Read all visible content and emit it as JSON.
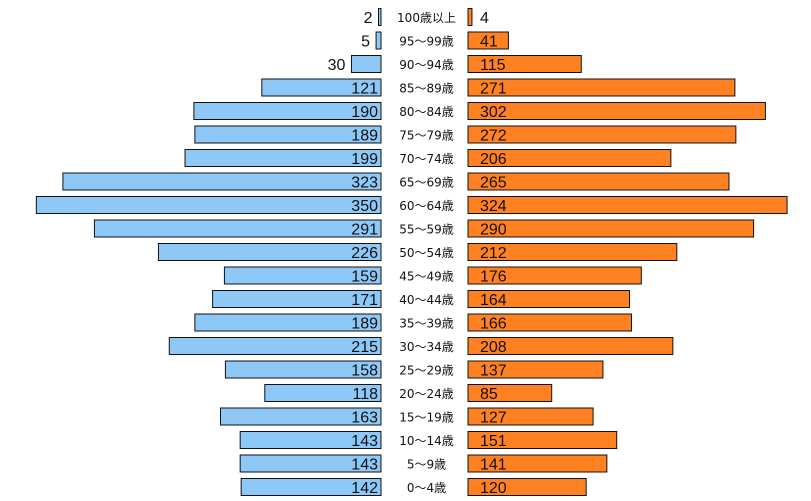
{
  "chart_data": {
    "type": "bar",
    "orientation": "horizontal",
    "layout": "population-pyramid",
    "categories": [
      "100歳以上",
      "95～99歳",
      "90～94歳",
      "85～89歳",
      "80～84歳",
      "75～79歳",
      "70～74歳",
      "65～69歳",
      "60～64歳",
      "55～59歳",
      "50～54歳",
      "45～49歳",
      "40～44歳",
      "35～39歳",
      "30～34歳",
      "25～29歳",
      "20～24歳",
      "15～19歳",
      "10～14歳",
      "5～9歳",
      "0～4歳"
    ],
    "series": [
      {
        "side": "left",
        "color": "#8EC8F6",
        "values": [
          2,
          5,
          30,
          121,
          190,
          189,
          199,
          323,
          350,
          291,
          226,
          159,
          171,
          189,
          215,
          158,
          118,
          163,
          143,
          143,
          142
        ]
      },
      {
        "side": "right",
        "color": "#FF8122",
        "values": [
          4,
          41,
          115,
          271,
          302,
          272,
          206,
          265,
          324,
          290,
          212,
          176,
          164,
          166,
          208,
          137,
          85,
          127,
          151,
          141,
          120
        ]
      }
    ],
    "title": "",
    "xlabel": "",
    "ylabel": "",
    "xlim": [
      0,
      350
    ],
    "grid": false,
    "legend": "none",
    "data_labels": true
  }
}
